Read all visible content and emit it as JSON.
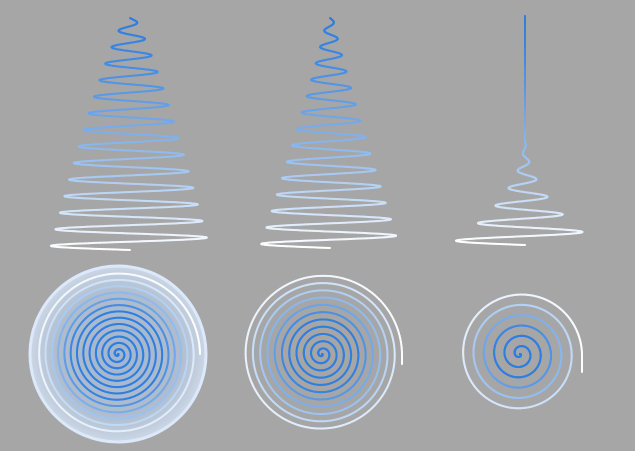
{
  "colors": {
    "background": "#a6a6a6",
    "spiral_inner": "#2f7fe0",
    "spiral_outer": "#ffffff",
    "disc_glow": "#c7dbf5"
  },
  "figures": [
    {
      "kind": "side-view",
      "label": "tall-wide-helix"
    },
    {
      "kind": "side-view",
      "label": "tall-narrow-helix"
    },
    {
      "kind": "side-view",
      "label": "flat-helix-with-straight-stem"
    },
    {
      "kind": "top-view",
      "label": "dense-spiral-disc"
    },
    {
      "kind": "top-view",
      "label": "medium-spiral"
    },
    {
      "kind": "top-view",
      "label": "sparse-spiral"
    }
  ]
}
